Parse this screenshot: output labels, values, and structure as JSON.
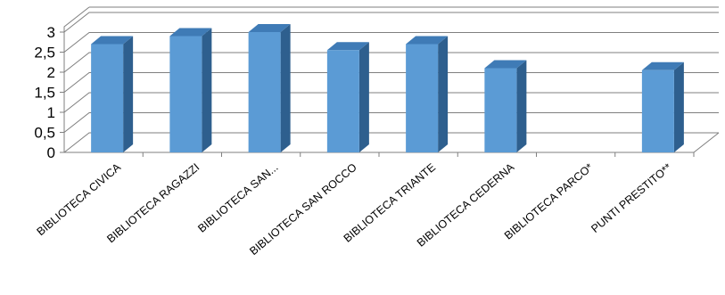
{
  "chart_data": {
    "type": "bar",
    "style": "3d-column",
    "categories": [
      "BIBLIOTECA CIVICA",
      "BIBLIOTECA RAGAZZI",
      "BIBLIOTECA SAN...",
      "BIBLIOTECA SAN ROCCO",
      "BIBLIOTECA TRIANTE",
      "BIBLIOTECA CEDERNA",
      "BIBLIOTECA PARCO*",
      "PUNTI PRESTITO**"
    ],
    "values": [
      2.7,
      2.9,
      3.0,
      2.55,
      2.7,
      2.1,
      null,
      2.05
    ],
    "ylim": [
      0,
      3
    ],
    "yticks": [
      "0",
      "0,5",
      "1",
      "1,5",
      "2",
      "2,5",
      "3"
    ],
    "grid": true,
    "legend": "none",
    "colors": {
      "front": "#5b9bd5",
      "side": "#2e5f8e",
      "top": "#3f7bb6",
      "grid": "#7f7f7f"
    }
  }
}
